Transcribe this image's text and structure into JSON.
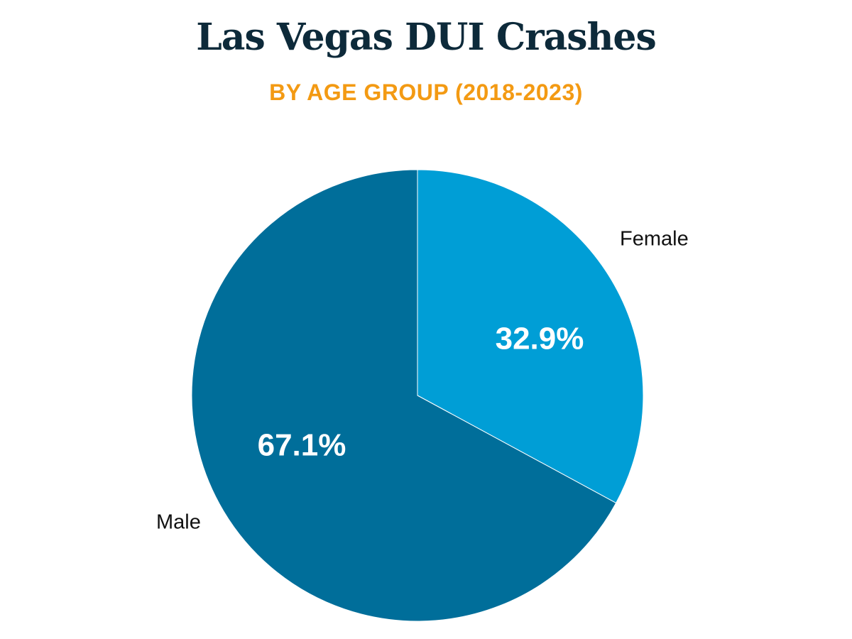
{
  "chart_data": {
    "type": "pie",
    "title": "Las Vegas DUI Crashes",
    "subtitle": "BY AGE GROUP (2018-2023)",
    "categories": [
      "Female",
      "Male"
    ],
    "values": [
      32.9,
      67.1
    ],
    "value_labels": [
      "32.9%",
      "67.1%"
    ],
    "colors": [
      "#009ed6",
      "#006e9a"
    ],
    "start_angle_deg": 0,
    "direction": "clockwise",
    "legend": "none"
  }
}
